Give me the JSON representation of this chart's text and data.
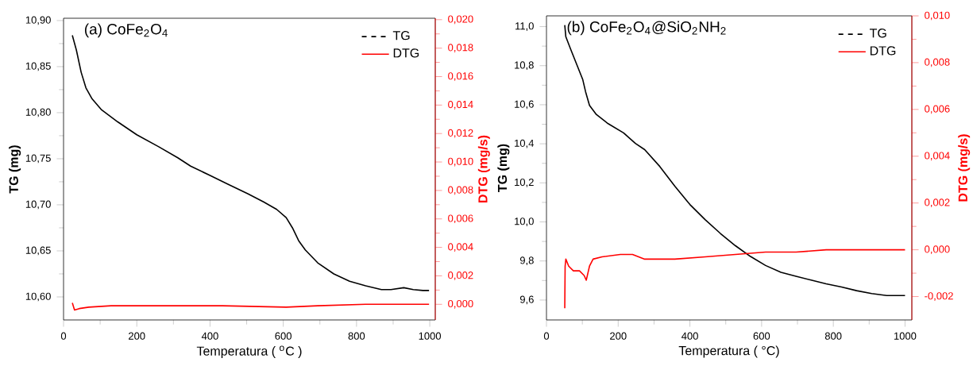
{
  "chart_data": [
    {
      "type": "line",
      "title": "(a) CoFe$_{2}$O$_{4}$",
      "xlabel": "Temperatura ( $^{o}$C )",
      "ylabel": "TG (mg)",
      "y2label": "DTG (mg/s)",
      "legend": "top right",
      "xlim": [
        0,
        1015
      ],
      "ylim": [
        10.575,
        10.9025
      ],
      "y2lim": [
        -0.0011,
        0.0201
      ],
      "xticks": [
        0,
        200,
        400,
        600,
        800,
        1000
      ],
      "yticks": [
        {
          "value": 10.6,
          "label": "10,60"
        },
        {
          "value": 10.65,
          "label": "10,65"
        },
        {
          "value": 10.7,
          "label": "10,70"
        },
        {
          "value": 10.75,
          "label": "10,75"
        },
        {
          "value": 10.8,
          "label": "10,80"
        },
        {
          "value": 10.85,
          "label": "10,85"
        },
        {
          "value": 10.9,
          "label": "10,90"
        }
      ],
      "y2ticks": [
        {
          "value": 0,
          "label": "0,000"
        },
        {
          "value": 0.002,
          "label": "0,002"
        },
        {
          "value": 0.004,
          "label": "0,004"
        },
        {
          "value": 0.006,
          "label": "0,006"
        },
        {
          "value": 0.008,
          "label": "0,008"
        },
        {
          "value": 0.01,
          "label": "0,010"
        },
        {
          "value": 0.012,
          "label": "0,012"
        },
        {
          "value": 0.014,
          "label": "0,014"
        },
        {
          "value": 0.016,
          "label": "0,016"
        },
        {
          "value": 0.018,
          "label": "0,018"
        },
        {
          "value": 0.02,
          "label": "0,020"
        }
      ],
      "series": [
        {
          "name": "TG",
          "color": "#000000",
          "x": [
            24,
            35,
            48,
            61,
            78,
            104,
            148,
            200,
            260,
            312,
            347,
            399,
            451,
            503,
            547,
            582,
            608,
            625,
            642,
            660,
            694,
            738,
            781,
            825,
            868,
            894,
            929,
            955,
            981,
            998
          ],
          "values": [
            10.884,
            10.868,
            10.844,
            10.827,
            10.815,
            10.803,
            10.79,
            10.776,
            10.763,
            10.751,
            10.742,
            10.732,
            10.722,
            10.712,
            10.703,
            10.695,
            10.686,
            10.675,
            10.661,
            10.651,
            10.637,
            10.625,
            10.617,
            10.612,
            10.608,
            10.608,
            10.61,
            10.608,
            10.607,
            10.607
          ]
        },
        {
          "name": "DTG",
          "color": "#ff0000",
          "axis": "y2",
          "x": [
            24,
            30,
            43,
            69,
            130,
            260,
            434,
            608,
            694,
            825,
            998
          ],
          "values": [
            0.0001,
            -0.0004,
            -0.0003,
            -0.0002,
            -0.0001,
            -0.0001,
            -0.0001,
            -0.0002,
            -0.0001,
            0.0,
            0.0
          ]
        }
      ]
    },
    {
      "type": "line",
      "title": "(b) CoFe$_{2}$O$_{4}$@SiO$_{2}$NH$_{2}$",
      "xlabel": "Temperatura ( °C)",
      "ylabel": "TG (mg)",
      "y2label": "DTG (mg/s)",
      "legend": "top right",
      "xlim": [
        0,
        1019
      ],
      "ylim": [
        9.498,
        11.055
      ],
      "y2lim": [
        -0.003,
        0.01
      ],
      "xticks": [
        0,
        200,
        400,
        600,
        800,
        1000
      ],
      "yticks": [
        {
          "value": 9.6,
          "label": "9,6"
        },
        {
          "value": 9.8,
          "label": "9,8"
        },
        {
          "value": 10.0,
          "label": "10,0"
        },
        {
          "value": 10.2,
          "label": "10,2"
        },
        {
          "value": 10.4,
          "label": "10,4"
        },
        {
          "value": 10.6,
          "label": "10,6"
        },
        {
          "value": 10.8,
          "label": "10,8"
        },
        {
          "value": 11.0,
          "label": "11,0"
        }
      ],
      "y2ticks": [
        {
          "value": -0.002,
          "label": "-0,002"
        },
        {
          "value": 0,
          "label": "0,000"
        },
        {
          "value": 0.002,
          "label": "0,002"
        },
        {
          "value": 0.004,
          "label": "0,004"
        },
        {
          "value": 0.006,
          "label": "0,006"
        },
        {
          "value": 0.008,
          "label": "0,008"
        },
        {
          "value": 0.01,
          "label": "0,010"
        }
      ],
      "series": [
        {
          "name": "TG",
          "color": "#000000",
          "x": [
            51,
            54,
            67,
            84,
            101,
            109,
            120,
            139,
            172,
            215,
            248,
            274,
            316,
            358,
            400,
            443,
            485,
            527,
            569,
            611,
            654,
            696,
            738,
            780,
            823,
            865,
            907,
            949,
            1000
          ],
          "values": [
            11.008,
            10.948,
            10.886,
            10.808,
            10.73,
            10.667,
            10.597,
            10.55,
            10.503,
            10.456,
            10.402,
            10.37,
            10.284,
            10.183,
            10.089,
            10.011,
            9.941,
            9.878,
            9.823,
            9.777,
            9.742,
            9.722,
            9.702,
            9.683,
            9.667,
            9.648,
            9.633,
            9.623,
            9.623
          ]
        },
        {
          "name": "DTG",
          "color": "#ff0000",
          "axis": "y2",
          "x": [
            51,
            52,
            54,
            62,
            75,
            92,
            105,
            111,
            120,
            130,
            155,
            206,
            240,
            274,
            358,
            443,
            527,
            611,
            696,
            780,
            865,
            1000
          ],
          "values": [
            -0.0025,
            -0.0007,
            -0.0004,
            -0.0007,
            -0.0009,
            -0.0009,
            -0.0011,
            -0.0013,
            -0.0007,
            -0.0004,
            -0.0003,
            -0.0002,
            -0.0002,
            -0.0004,
            -0.0004,
            -0.0003,
            -0.0002,
            -0.0001,
            -0.0001,
            0.0,
            0.0,
            0.0
          ]
        }
      ]
    }
  ]
}
